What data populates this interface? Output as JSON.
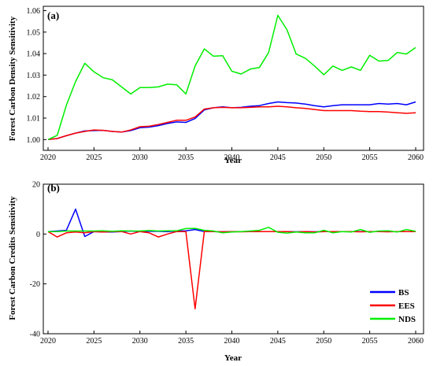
{
  "chart_data": [
    {
      "type": "line",
      "panel_label": "(a)",
      "xlabel": "Year",
      "ylabel": "Forest Carbon Density Sensitivity",
      "xlim": [
        2020,
        2060
      ],
      "ylim": [
        0.995,
        1.062
      ],
      "xticks": [
        2020,
        2025,
        2030,
        2035,
        2040,
        2045,
        2050,
        2055,
        2060
      ],
      "yticks": [
        1.0,
        1.01,
        1.02,
        1.03,
        1.04,
        1.05,
        1.06
      ],
      "ytick_labels": [
        "1.00",
        "1.01",
        "1.02",
        "1.03",
        "1.04",
        "1.05",
        "1.06"
      ],
      "x": [
        2020,
        2021,
        2022,
        2023,
        2024,
        2025,
        2026,
        2027,
        2028,
        2029,
        2030,
        2031,
        2032,
        2033,
        2034,
        2035,
        2036,
        2037,
        2038,
        2039,
        2040,
        2041,
        2042,
        2043,
        2044,
        2045,
        2046,
        2047,
        2048,
        2049,
        2050,
        2051,
        2052,
        2053,
        2054,
        2055,
        2056,
        2057,
        2058,
        2059,
        2060
      ],
      "series": [
        {
          "name": "BS",
          "color": "#0000ff",
          "values": [
            1.0,
            1.0005,
            1.0018,
            1.003,
            1.004,
            1.0042,
            1.0043,
            1.0038,
            1.0035,
            1.0042,
            1.0055,
            1.0058,
            1.0065,
            1.0075,
            1.0082,
            1.008,
            1.0098,
            1.0138,
            1.0148,
            1.0152,
            1.0148,
            1.015,
            1.0155,
            1.0158,
            1.0168,
            1.0175,
            1.0172,
            1.017,
            1.0165,
            1.0158,
            1.0152,
            1.0158,
            1.0162,
            1.0162,
            1.0162,
            1.0162,
            1.0168,
            1.0165,
            1.0168,
            1.0162,
            1.0175
          ]
        },
        {
          "name": "EES",
          "color": "#ff0000",
          "values": [
            1.0,
            1.0005,
            1.0018,
            1.003,
            1.0038,
            1.0045,
            1.0043,
            1.0038,
            1.0035,
            1.0045,
            1.006,
            1.0062,
            1.007,
            1.008,
            1.009,
            1.009,
            1.0105,
            1.0142,
            1.0148,
            1.015,
            1.0148,
            1.0148,
            1.015,
            1.0152,
            1.0152,
            1.0155,
            1.0152,
            1.0148,
            1.0145,
            1.014,
            1.0135,
            1.0135,
            1.0135,
            1.0135,
            1.0132,
            1.013,
            1.013,
            1.0128,
            1.0125,
            1.0122,
            1.0125
          ]
        },
        {
          "name": "NDS",
          "color": "#00ee00",
          "values": [
            1.0,
            1.002,
            1.016,
            1.027,
            1.0355,
            1.0315,
            1.0288,
            1.0278,
            1.0245,
            1.0212,
            1.0242,
            1.0242,
            1.0245,
            1.0258,
            1.0255,
            1.0212,
            1.0342,
            1.0422,
            1.0388,
            1.039,
            1.0318,
            1.0305,
            1.0328,
            1.0335,
            1.0405,
            1.0578,
            1.051,
            1.0398,
            1.0378,
            1.0342,
            1.0302,
            1.0342,
            1.0322,
            1.0338,
            1.0322,
            1.0392,
            1.0365,
            1.0368,
            1.0405,
            1.0398,
            1.0428
          ]
        }
      ]
    },
    {
      "type": "line",
      "panel_label": "(b)",
      "xlabel": "Year",
      "ylabel": "Forest Carbon Credits Sensitivity",
      "xlim": [
        2020,
        2060
      ],
      "ylim": [
        -40,
        20
      ],
      "xticks": [
        2020,
        2025,
        2030,
        2035,
        2040,
        2045,
        2050,
        2055,
        2060
      ],
      "yticks": [
        -40,
        -20,
        0,
        20
      ],
      "ytick_labels": [
        "-40",
        "-20",
        "0",
        "20"
      ],
      "x": [
        2020,
        2021,
        2022,
        2023,
        2024,
        2025,
        2026,
        2027,
        2028,
        2029,
        2030,
        2031,
        2032,
        2033,
        2034,
        2035,
        2036,
        2037,
        2038,
        2039,
        2040,
        2041,
        2042,
        2043,
        2044,
        2045,
        2046,
        2047,
        2048,
        2049,
        2050,
        2051,
        2052,
        2053,
        2054,
        2055,
        2056,
        2057,
        2058,
        2059,
        2060
      ],
      "series": [
        {
          "name": "BS",
          "color": "#0000ff",
          "values": [
            1,
            1.2,
            1.5,
            10,
            -1,
            1,
            0.8,
            0.8,
            1,
            1.2,
            1,
            1.1,
            1.1,
            1,
            1.2,
            1.3,
            1.8,
            1,
            1,
            0.9,
            1,
            1,
            1,
            1,
            1,
            1,
            1,
            0.9,
            1,
            0.9,
            1,
            1,
            1,
            1,
            1,
            1,
            1,
            1,
            1,
            1,
            1
          ]
        },
        {
          "name": "EES",
          "color": "#ff0000",
          "values": [
            1,
            -1.2,
            0.5,
            0.8,
            0.5,
            1,
            0.8,
            1,
            1,
            0,
            1,
            0.5,
            -1.2,
            0,
            1,
            1,
            -30,
            1,
            1,
            0.9,
            1,
            0.9,
            1,
            1,
            1,
            1,
            1,
            0.8,
            1,
            0.8,
            1,
            1,
            1,
            1,
            0.9,
            1,
            1,
            0.9,
            1,
            1,
            1
          ]
        },
        {
          "name": "NDS",
          "color": "#00ee00",
          "values": [
            1,
            1,
            1.2,
            1.2,
            1.2,
            1.2,
            1.3,
            1.1,
            1.3,
            1.2,
            1.2,
            1.4,
            1.2,
            1.3,
            1.3,
            2.2,
            2.3,
            1.5,
            1.2,
            0.5,
            0.8,
            1,
            1.2,
            1.5,
            2.7,
            0.7,
            0.4,
            0.8,
            0.5,
            0.5,
            1.5,
            0.5,
            1,
            0.8,
            1.8,
            0.7,
            1.2,
            1.3,
            0.8,
            1.8,
            1.1
          ]
        }
      ],
      "legend": {
        "position": "bottom-right",
        "entries": [
          "BS",
          "EES",
          "NDS"
        ]
      }
    }
  ]
}
